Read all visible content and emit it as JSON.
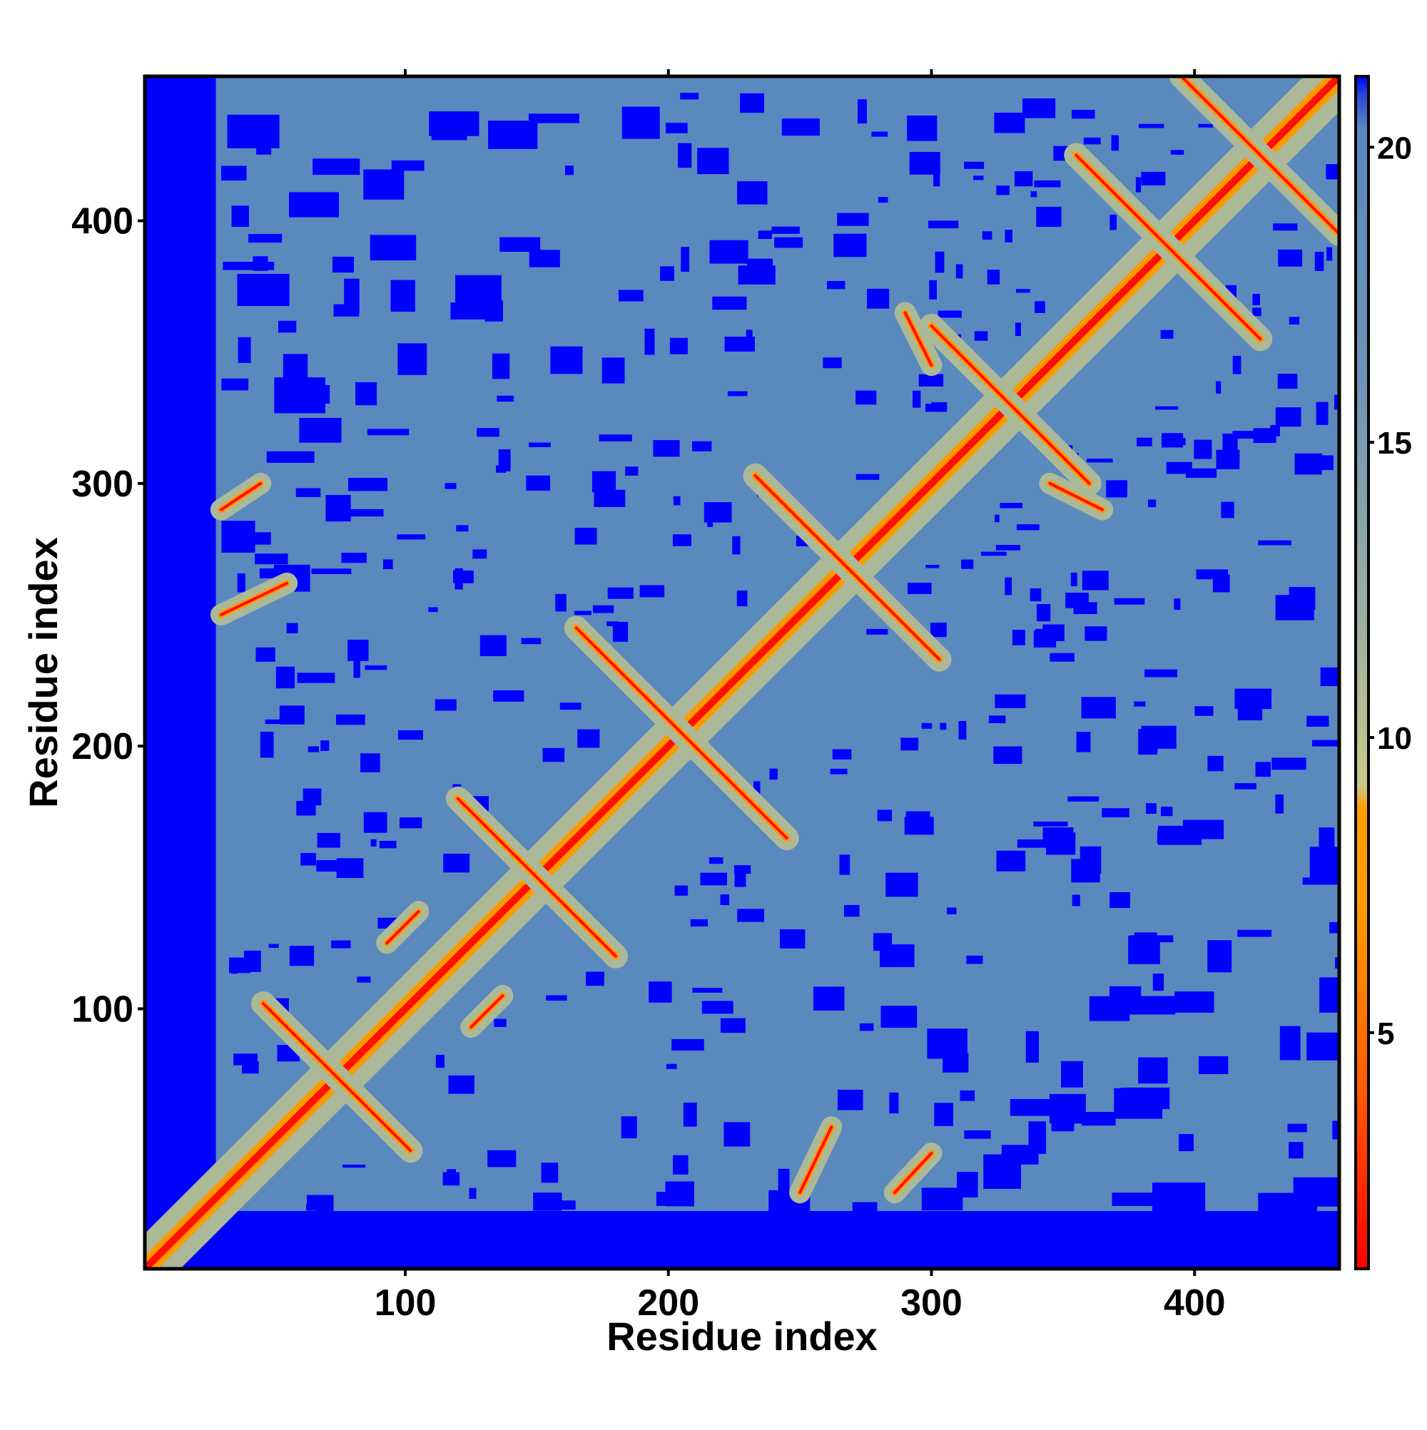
{
  "chart_data": {
    "type": "heatmap",
    "title": "",
    "xlabel": "Residue index",
    "ylabel": "Residue index",
    "n_residues": 455,
    "xlim": [
      1,
      455
    ],
    "ylim": [
      1,
      455
    ],
    "x_ticks": [
      100,
      200,
      300,
      400
    ],
    "y_ticks": [
      100,
      200,
      300,
      400
    ],
    "x_tick_labels": [
      "100",
      "200",
      "300",
      "400"
    ],
    "y_tick_labels": [
      "100",
      "200",
      "300",
      "400"
    ],
    "colorbar": {
      "range": [
        1,
        21.2
      ],
      "ticks": [
        5,
        10,
        15,
        20
      ],
      "tick_labels": [
        "5",
        "10",
        "15",
        "20"
      ],
      "stops": [
        {
          "value": 1,
          "color": "#ff0000"
        },
        {
          "value": 4,
          "color": "#ff5a00"
        },
        {
          "value": 7,
          "color": "#ff9900"
        },
        {
          "value": 8.8,
          "color": "#ffa000"
        },
        {
          "value": 9.2,
          "color": "#c8c88a"
        },
        {
          "value": 12,
          "color": "#9cb0a0"
        },
        {
          "value": 16,
          "color": "#6f94b8"
        },
        {
          "value": 20.3,
          "color": "#5a89be"
        },
        {
          "value": 20.9,
          "color": "#2b44dd"
        },
        {
          "value": 21.2,
          "color": "#0000ff"
        }
      ]
    },
    "background_color": "#5a89be",
    "missing_color": "#0000ff",
    "contact_color": "#ff2200",
    "diagonal": {
      "from": 1,
      "to": 455,
      "value": 1.5
    },
    "contact_features": [
      {
        "type": "diagonal-band",
        "from": 1,
        "to": 455,
        "width": 3
      },
      {
        "type": "x-cross",
        "center": [
          74,
          74
        ],
        "span": 28
      },
      {
        "type": "x-cross",
        "center": [
          150,
          150
        ],
        "span": 30
      },
      {
        "type": "x-cross",
        "center": [
          205,
          205
        ],
        "span": 40
      },
      {
        "type": "x-cross",
        "center": [
          268,
          268
        ],
        "span": 35
      },
      {
        "type": "x-cross",
        "center": [
          330,
          330
        ],
        "span": 30
      },
      {
        "type": "x-cross",
        "center": [
          390,
          390
        ],
        "span": 35
      },
      {
        "type": "x-cross",
        "center": [
          425,
          425
        ],
        "span": 30
      },
      {
        "type": "anti-stripe",
        "start": [
          250,
          30
        ],
        "end": [
          262,
          55
        ]
      },
      {
        "type": "anti-stripe",
        "start": [
          286,
          30
        ],
        "end": [
          300,
          45
        ]
      },
      {
        "type": "parallel-stripe",
        "start": [
          125,
          93
        ],
        "end": [
          137,
          105
        ]
      },
      {
        "type": "parallel-stripe",
        "start": [
          93,
          125
        ],
        "end": [
          105,
          137
        ]
      },
      {
        "type": "anti-stripe",
        "start": [
          30,
          250
        ],
        "end": [
          55,
          262
        ]
      },
      {
        "type": "anti-stripe",
        "start": [
          30,
          290
        ],
        "end": [
          45,
          300
        ]
      },
      {
        "type": "anti-stripe",
        "start": [
          345,
          300
        ],
        "end": [
          365,
          290
        ]
      },
      {
        "type": "anti-stripe",
        "start": [
          300,
          345
        ],
        "end": [
          290,
          365
        ]
      }
    ]
  }
}
